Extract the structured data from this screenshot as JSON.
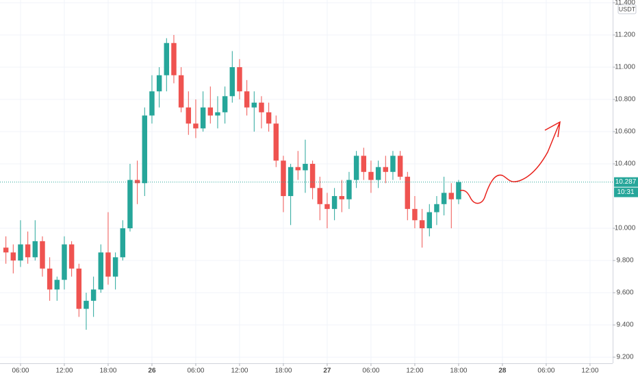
{
  "chart_data": {
    "type": "candlestick",
    "currency": "USDT",
    "last_price": 10.287,
    "last_price_label": "10.287",
    "countdown": "10:31",
    "up_color": "#26a69a",
    "down_color": "#ef5350",
    "grid": true,
    "ylim": [
      9.162,
      11.417
    ],
    "yticks": [
      {
        "value": 9.2,
        "label": "9.200"
      },
      {
        "value": 9.4,
        "label": "9.400"
      },
      {
        "value": 9.6,
        "label": "9.600"
      },
      {
        "value": 9.8,
        "label": "9.800"
      },
      {
        "value": 10.0,
        "label": "10.000"
      },
      {
        "value": 10.4,
        "label": "10.400"
      },
      {
        "value": 10.6,
        "label": "10.600"
      },
      {
        "value": 10.8,
        "label": "10.800"
      },
      {
        "value": 11.0,
        "label": "11.000"
      },
      {
        "value": 11.2,
        "label": "11.200"
      },
      {
        "value": 11.4,
        "label": "11.400"
      }
    ],
    "xlim": [
      3.19,
      87.1
    ],
    "xticks": [
      {
        "value": 6,
        "label": "06:00"
      },
      {
        "value": 12,
        "label": "12:00"
      },
      {
        "value": 18,
        "label": "18:00"
      },
      {
        "value": 24,
        "label": "26"
      },
      {
        "value": 30,
        "label": "06:00"
      },
      {
        "value": 36,
        "label": "12:00"
      },
      {
        "value": 42,
        "label": "18:00"
      },
      {
        "value": 48,
        "label": "27"
      },
      {
        "value": 54,
        "label": "06:00"
      },
      {
        "value": 60,
        "label": "12:00"
      },
      {
        "value": 66,
        "label": "18:00"
      },
      {
        "value": 72,
        "label": "28"
      },
      {
        "value": 78,
        "label": "06:00"
      },
      {
        "value": 84,
        "label": "12:00"
      }
    ],
    "x": [
      4,
      5,
      6,
      7,
      8,
      9,
      10,
      11,
      12,
      13,
      14,
      15,
      16,
      17,
      18,
      19,
      20,
      21,
      22,
      23,
      24,
      25,
      26,
      27,
      28,
      29,
      30,
      31,
      32,
      33,
      34,
      35,
      36,
      37,
      38,
      39,
      40,
      41,
      42,
      43,
      44,
      45,
      46,
      47,
      48,
      49,
      50,
      51,
      52,
      53,
      54,
      55,
      56,
      57,
      58,
      59,
      60,
      61,
      62,
      63,
      64,
      65,
      66
    ],
    "candles": [
      [
        9.88,
        9.95,
        9.78,
        9.85
      ],
      [
        9.85,
        9.9,
        9.72,
        9.8
      ],
      [
        9.8,
        10.05,
        9.76,
        9.9
      ],
      [
        9.9,
        9.98,
        9.78,
        9.82
      ],
      [
        9.82,
        10.05,
        9.8,
        9.92
      ],
      [
        9.92,
        9.95,
        9.7,
        9.75
      ],
      [
        9.75,
        9.82,
        9.55,
        9.62
      ],
      [
        9.62,
        9.7,
        9.55,
        9.68
      ],
      [
        9.68,
        9.95,
        9.62,
        9.9
      ],
      [
        9.9,
        9.92,
        9.7,
        9.75
      ],
      [
        9.75,
        9.78,
        9.45,
        9.5
      ],
      [
        9.5,
        9.6,
        9.37,
        9.55
      ],
      [
        9.55,
        9.7,
        9.45,
        9.62
      ],
      [
        9.62,
        9.9,
        9.6,
        9.85
      ],
      [
        9.85,
        10.1,
        9.65,
        9.7
      ],
      [
        9.7,
        9.85,
        9.62,
        9.82
      ],
      [
        9.82,
        10.05,
        9.8,
        10.0
      ],
      [
        10.0,
        10.4,
        9.98,
        10.3
      ],
      [
        10.3,
        10.42,
        10.15,
        10.28
      ],
      [
        10.28,
        10.75,
        10.2,
        10.7
      ],
      [
        10.7,
        10.95,
        10.65,
        10.85
      ],
      [
        10.85,
        11.0,
        10.75,
        10.95
      ],
      [
        10.95,
        11.18,
        10.85,
        11.15
      ],
      [
        11.15,
        11.2,
        10.9,
        10.95
      ],
      [
        10.95,
        11.0,
        10.72,
        10.75
      ],
      [
        10.75,
        10.85,
        10.58,
        10.65
      ],
      [
        10.65,
        10.8,
        10.56,
        10.62
      ],
      [
        10.62,
        10.85,
        10.6,
        10.75
      ],
      [
        10.75,
        10.88,
        10.65,
        10.7
      ],
      [
        10.7,
        10.82,
        10.62,
        10.72
      ],
      [
        10.72,
        10.88,
        10.65,
        10.82
      ],
      [
        10.82,
        11.1,
        10.78,
        11.0
      ],
      [
        11.0,
        11.05,
        10.8,
        10.85
      ],
      [
        10.85,
        10.92,
        10.7,
        10.75
      ],
      [
        10.75,
        10.85,
        10.6,
        10.78
      ],
      [
        10.78,
        10.82,
        10.62,
        10.72
      ],
      [
        10.72,
        10.78,
        10.6,
        10.65
      ],
      [
        10.65,
        10.7,
        10.38,
        10.42
      ],
      [
        10.42,
        10.45,
        10.1,
        10.2
      ],
      [
        10.2,
        10.4,
        10.02,
        10.38
      ],
      [
        10.38,
        10.48,
        10.3,
        10.36
      ],
      [
        10.36,
        10.55,
        10.22,
        10.4
      ],
      [
        10.4,
        10.42,
        10.18,
        10.25
      ],
      [
        10.25,
        10.32,
        10.05,
        10.15
      ],
      [
        10.15,
        10.22,
        10.0,
        10.12
      ],
      [
        10.12,
        10.25,
        10.05,
        10.2
      ],
      [
        10.2,
        10.3,
        10.1,
        10.18
      ],
      [
        10.18,
        10.35,
        10.12,
        10.3
      ],
      [
        10.3,
        10.48,
        10.25,
        10.45
      ],
      [
        10.45,
        10.5,
        10.3,
        10.35
      ],
      [
        10.35,
        10.42,
        10.22,
        10.3
      ],
      [
        10.3,
        10.42,
        10.25,
        10.38
      ],
      [
        10.38,
        10.45,
        10.28,
        10.35
      ],
      [
        10.35,
        10.48,
        10.3,
        10.45
      ],
      [
        10.45,
        10.48,
        10.3,
        10.32
      ],
      [
        10.32,
        10.35,
        10.05,
        10.12
      ],
      [
        10.12,
        10.2,
        10.0,
        10.05
      ],
      [
        10.05,
        10.12,
        9.88,
        10.0
      ],
      [
        10.0,
        10.15,
        9.95,
        10.1
      ],
      [
        10.1,
        10.2,
        10.02,
        10.15
      ],
      [
        10.15,
        10.32,
        10.08,
        10.22
      ],
      [
        10.22,
        10.28,
        10.0,
        10.18
      ],
      [
        10.18,
        10.3,
        10.15,
        10.287
      ]
    ]
  }
}
